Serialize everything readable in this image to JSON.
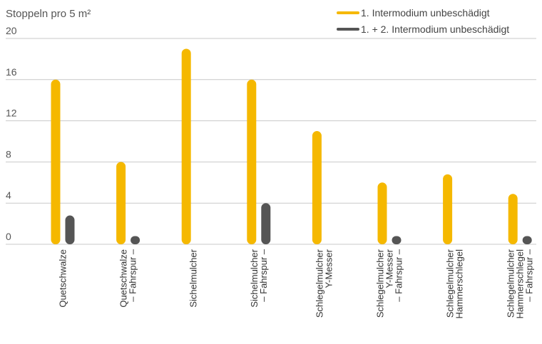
{
  "chart_data": {
    "type": "bar",
    "ylabel": "Stoppeln pro 5 m²",
    "ylim": [
      0,
      20
    ],
    "yticks": [
      0,
      4,
      8,
      12,
      16,
      20
    ],
    "grid": true,
    "legend_position": "top-right",
    "categories": [
      [
        "Quetschwalze"
      ],
      [
        "Quetschwalze",
        "– Fahrspur –"
      ],
      [
        "Sichelmulcher"
      ],
      [
        "Sichelmulcher",
        "– Fahrspur –"
      ],
      [
        "Schlegelmulcher",
        "Y-Messer"
      ],
      [
        "Schlegelmulcher",
        "Y-Messer",
        "– Fahrspur –"
      ],
      [
        "Schlegelmulcher",
        "Hammerschlegel"
      ],
      [
        "Schlegelmulcher",
        "Hammerschlegel",
        "– Fahrspur –"
      ]
    ],
    "series": [
      {
        "name": "1. Intermodium unbeschädigt",
        "color": "#f5b800",
        "values": [
          16,
          8,
          19,
          16,
          11,
          6,
          6.8,
          4.9
        ]
      },
      {
        "name": "1. + 2. Intermodium unbeschädigt",
        "color": "#555555",
        "values": [
          2.8,
          0.8,
          0,
          4,
          0,
          0.8,
          0,
          0.8
        ]
      }
    ]
  }
}
